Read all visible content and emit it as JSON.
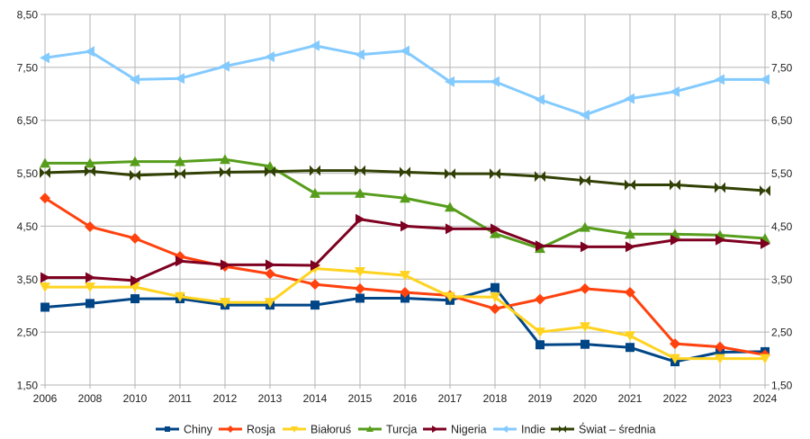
{
  "chart_data": {
    "type": "line",
    "title": "",
    "xlabel": "",
    "ylabel": "",
    "categories": [
      "2006",
      "2008",
      "2010",
      "2011",
      "2012",
      "2013",
      "2014",
      "2015",
      "2016",
      "2017",
      "2018",
      "2019",
      "2020",
      "2021",
      "2022",
      "2023",
      "2024"
    ],
    "ylim": [
      1.5,
      8.5
    ],
    "y_ticks": [
      "1,50",
      "2,50",
      "3,50",
      "4,50",
      "5,50",
      "6,50",
      "7,50",
      "8,50"
    ],
    "y_tick_values": [
      1.5,
      2.5,
      3.5,
      4.5,
      5.5,
      6.5,
      7.5,
      8.5
    ],
    "secondary_y_axis": true,
    "grid": true,
    "legend_position": "bottom",
    "series": [
      {
        "name": "Chiny",
        "color": "#004586",
        "marker": "square",
        "values": [
          2.97,
          3.04,
          3.13,
          3.13,
          3.01,
          3.01,
          3.01,
          3.14,
          3.14,
          3.1,
          3.34,
          2.26,
          2.27,
          2.21,
          1.94,
          2.12,
          2.13
        ]
      },
      {
        "name": "Rosja",
        "color": "#ff420e",
        "marker": "diamond",
        "values": [
          5.03,
          4.49,
          4.27,
          3.93,
          3.74,
          3.6,
          3.4,
          3.32,
          3.25,
          3.19,
          2.94,
          3.12,
          3.32,
          3.25,
          2.28,
          2.22,
          2.07
        ]
      },
      {
        "name": "Białoruś",
        "color": "#ffd320",
        "marker": "triangle-down",
        "values": [
          3.35,
          3.35,
          3.35,
          3.17,
          3.06,
          3.06,
          3.7,
          3.64,
          3.57,
          3.17,
          3.16,
          2.5,
          2.6,
          2.43,
          2.0,
          2.0,
          2.0
        ]
      },
      {
        "name": "Turcja",
        "color": "#579d1c",
        "marker": "triangle-up",
        "values": [
          5.69,
          5.69,
          5.72,
          5.72,
          5.76,
          5.63,
          5.12,
          5.12,
          5.03,
          4.86,
          4.36,
          4.08,
          4.48,
          4.35,
          4.35,
          4.33,
          4.27
        ]
      },
      {
        "name": "Nigeria",
        "color": "#7e0021",
        "marker": "triangle-right",
        "values": [
          3.53,
          3.53,
          3.47,
          3.84,
          3.77,
          3.77,
          3.76,
          4.63,
          4.5,
          4.45,
          4.45,
          4.13,
          4.11,
          4.11,
          4.24,
          4.24,
          4.17
        ]
      },
      {
        "name": "Indie",
        "color": "#83caff",
        "marker": "triangle-left",
        "values": [
          7.68,
          7.8,
          7.27,
          7.29,
          7.52,
          7.7,
          7.91,
          7.74,
          7.81,
          7.23,
          7.23,
          6.89,
          6.6,
          6.91,
          7.04,
          7.27,
          7.27
        ]
      },
      {
        "name": "Świat – średnia",
        "color": "#314004",
        "marker": "bowtie",
        "values": [
          5.51,
          5.54,
          5.46,
          5.49,
          5.52,
          5.53,
          5.55,
          5.55,
          5.52,
          5.49,
          5.49,
          5.44,
          5.36,
          5.28,
          5.28,
          5.23,
          5.17
        ]
      }
    ]
  }
}
